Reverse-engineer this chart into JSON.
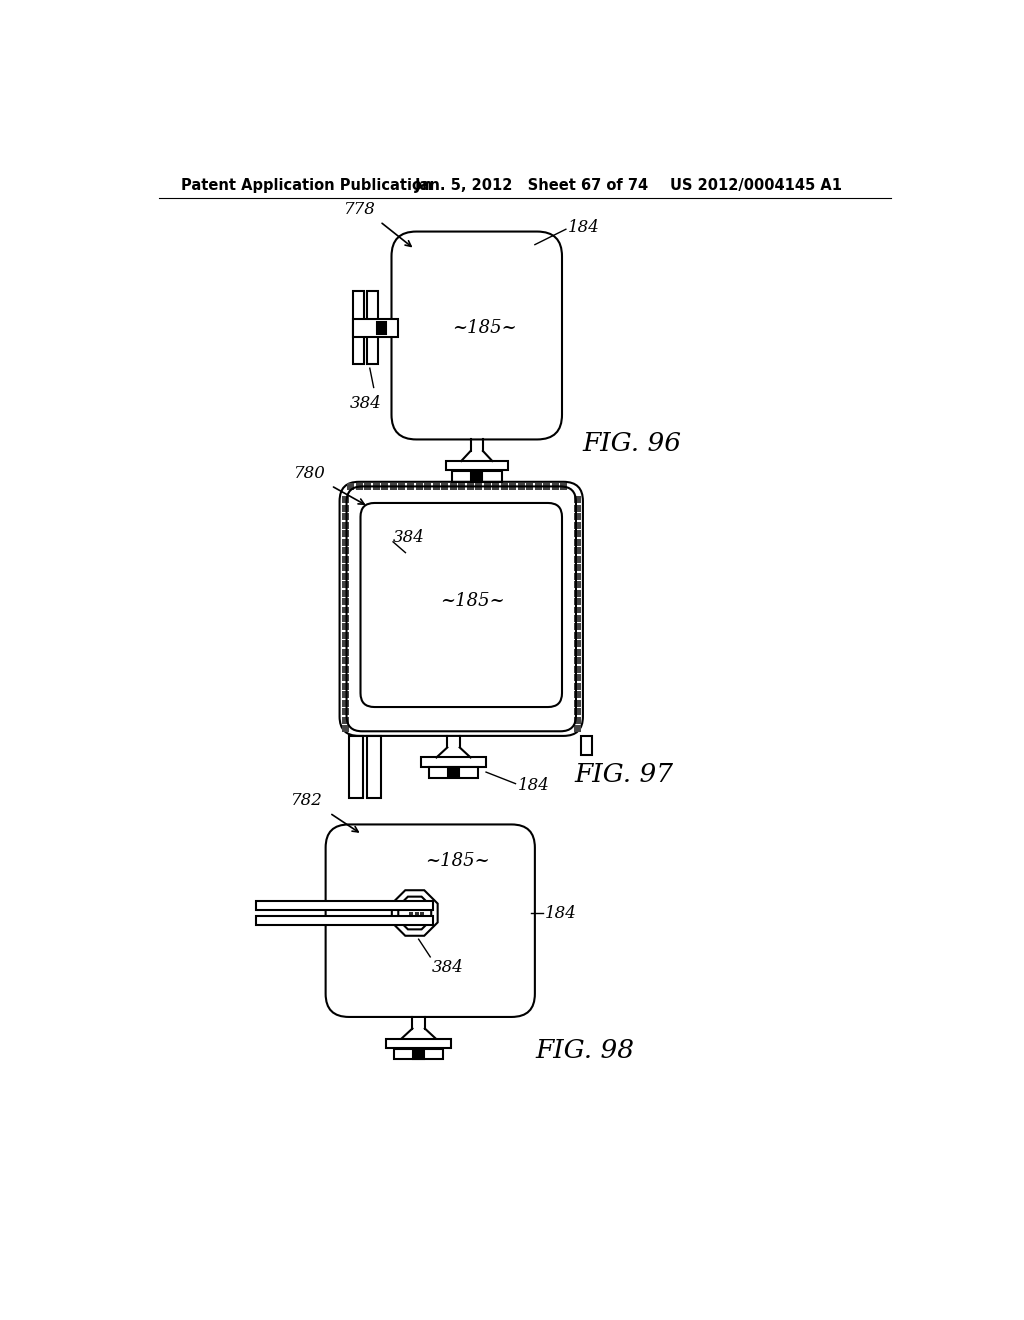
{
  "header_left": "Patent Application Publication",
  "header_mid": "Jan. 5, 2012   Sheet 67 of 74",
  "header_right": "US 2012/0004145 A1",
  "fig96_label": "FIG. 96",
  "fig97_label": "FIG. 97",
  "fig98_label": "FIG. 98",
  "bg_color": "#ffffff",
  "line_color": "#000000",
  "label_778": "778",
  "label_184_96": "184",
  "label_185_96": "~185~",
  "label_384_96": "384",
  "label_780": "780",
  "label_384_97": "384",
  "label_185_97": "~185~",
  "label_184_97": "184",
  "label_782": "782",
  "label_185_98": "~185~",
  "label_184_98": "184",
  "label_384_98": "384"
}
